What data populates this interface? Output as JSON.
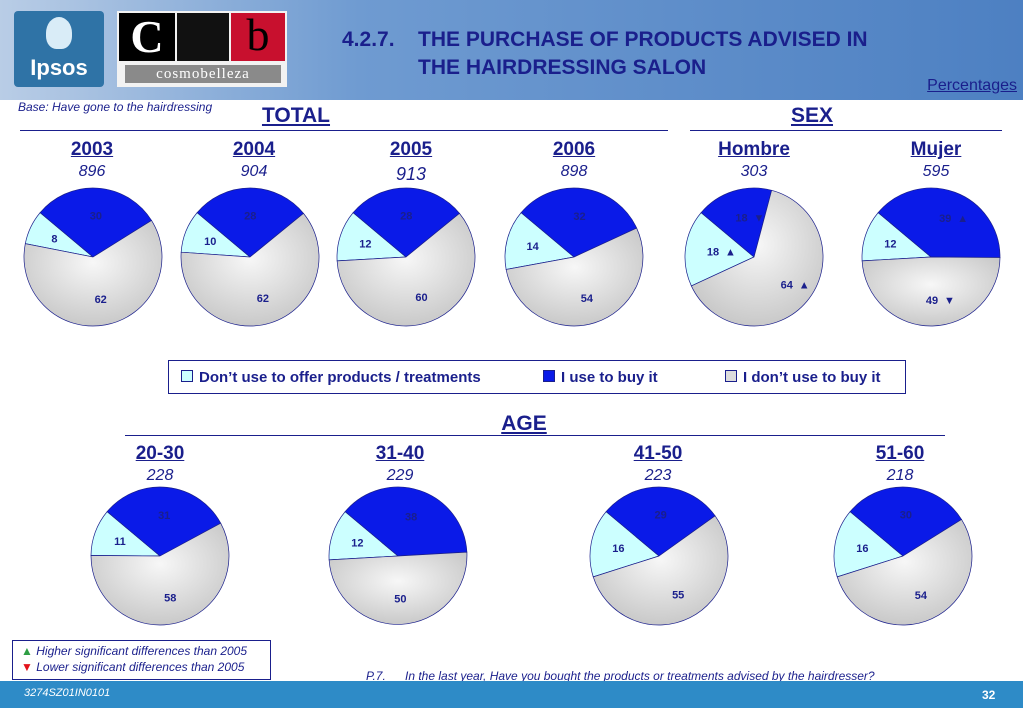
{
  "header": {
    "ipsos_logo_text": "Ipsos",
    "cosmo_logo": {
      "c": "C",
      "b": "b",
      "word": "cosmobelleza"
    },
    "number": "4.2.7.",
    "title_line1": "THE PURCHASE OF PRODUCTS ADVISED IN",
    "title_line2": "THE HAIRDRESSING SALON",
    "units": "Percentages"
  },
  "base_note": "Base: Have gone to the hairdressing",
  "sections": {
    "total": "TOTAL",
    "sex": "SEX",
    "age": "AGE"
  },
  "legend": {
    "dont_use_offer": "Don’t use to offer products / treatments",
    "use_to_buy": "I use to buy it",
    "dont_use_buy": "I don’t use to buy it"
  },
  "significance": {
    "higher": "Higher significant differences than 2005",
    "lower": "Lower significant differences than 2005"
  },
  "question": {
    "code": "P.7.",
    "text": "In the last year, Have you bought the products or treatments advised by the hairdresser?"
  },
  "footer": {
    "code": "3274SZ01IN0101",
    "page": "32"
  },
  "colors": {
    "dont_use_offer": "#ccffff",
    "use_to_buy": "#0a1ae8",
    "dont_use_buy": "#dcdcdc",
    "up": "#2e9e44",
    "down": "#e3121a"
  },
  "chart_data": [
    {
      "type": "pie",
      "group": "TOTAL",
      "label": "2003",
      "base": "896",
      "categories": [
        "Don’t use to offer products / treatments",
        "I use to buy it",
        "I don’t use to buy it"
      ],
      "values": [
        8,
        30,
        62
      ],
      "marks": [
        null,
        null,
        null
      ]
    },
    {
      "type": "pie",
      "group": "TOTAL",
      "label": "2004",
      "base": "904",
      "categories": [
        "Don’t use to offer products / treatments",
        "I use to buy it",
        "I don’t use to buy it"
      ],
      "values": [
        10,
        28,
        62
      ],
      "marks": [
        null,
        null,
        null
      ]
    },
    {
      "type": "pie",
      "group": "TOTAL",
      "label": "2005",
      "base": "913",
      "categories": [
        "Don’t use to offer products / treatments",
        "I use to buy it",
        "I don’t use to buy it"
      ],
      "values": [
        12,
        28,
        60
      ],
      "marks": [
        null,
        null,
        null
      ]
    },
    {
      "type": "pie",
      "group": "TOTAL",
      "label": "2006",
      "base": "898",
      "categories": [
        "Don’t use to offer products / treatments",
        "I use to buy it",
        "I don’t use to buy it"
      ],
      "values": [
        14,
        32,
        54
      ],
      "marks": [
        null,
        null,
        null
      ]
    },
    {
      "type": "pie",
      "group": "SEX",
      "label": "Hombre",
      "base": "303",
      "categories": [
        "Don’t use to offer products / treatments",
        "I use to buy it",
        "I don’t use to buy it"
      ],
      "values": [
        18,
        18,
        64
      ],
      "marks": [
        "up",
        "down",
        "up"
      ]
    },
    {
      "type": "pie",
      "group": "SEX",
      "label": "Mujer",
      "base": "595",
      "categories": [
        "Don’t use to offer products / treatments",
        "I use to buy it",
        "I don’t use to buy it"
      ],
      "values": [
        12,
        39,
        49
      ],
      "marks": [
        null,
        "up",
        "down"
      ]
    },
    {
      "type": "pie",
      "group": "AGE",
      "label": "20-30",
      "base": "228",
      "categories": [
        "Don’t use to offer products / treatments",
        "I use to buy it",
        "I don’t use to buy it"
      ],
      "values": [
        11,
        31,
        58
      ],
      "marks": [
        null,
        null,
        null
      ]
    },
    {
      "type": "pie",
      "group": "AGE",
      "label": "31-40",
      "base": "229",
      "categories": [
        "Don’t use to offer products / treatments",
        "I use to buy it",
        "I don’t use to buy it"
      ],
      "values": [
        12,
        38,
        50
      ],
      "marks": [
        null,
        null,
        null
      ]
    },
    {
      "type": "pie",
      "group": "AGE",
      "label": "41-50",
      "base": "223",
      "categories": [
        "Don’t use to offer products / treatments",
        "I use to buy it",
        "I don’t use to buy it"
      ],
      "values": [
        16,
        29,
        55
      ],
      "marks": [
        null,
        null,
        null
      ]
    },
    {
      "type": "pie",
      "group": "AGE",
      "label": "51-60",
      "base": "218",
      "categories": [
        "Don’t use to offer products / treatments",
        "I use to buy it",
        "I don’t use to buy it"
      ],
      "values": [
        16,
        30,
        54
      ],
      "marks": [
        null,
        null,
        null
      ]
    }
  ]
}
